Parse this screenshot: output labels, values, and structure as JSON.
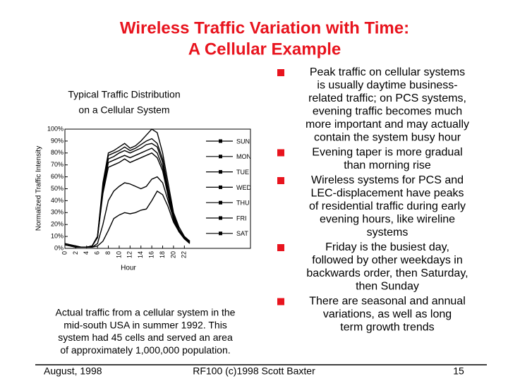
{
  "title": {
    "lines": [
      "Wireless Traffic Variation with Time:",
      "A Cellular Example"
    ]
  },
  "chart_data": {
    "type": "line",
    "title_lines": [
      "Typical Traffic Distribution",
      "on a Cellular System"
    ],
    "y_label": "Normalized Traffic Intensity",
    "x_label": "Hour",
    "x": [
      0,
      1,
      2,
      3,
      4,
      5,
      6,
      7,
      8,
      9,
      10,
      11,
      12,
      13,
      14,
      15,
      16,
      17,
      18,
      19,
      20,
      21,
      22,
      23
    ],
    "xlim": [
      0,
      23
    ],
    "xticks": [
      0,
      2,
      4,
      6,
      8,
      10,
      12,
      14,
      16,
      18,
      20,
      22
    ],
    "ylim": [
      0,
      100
    ],
    "yticks": [
      {
        "value": 0,
        "label": "0%"
      },
      {
        "value": 10,
        "label": "10%"
      },
      {
        "value": 20,
        "label": "20%"
      },
      {
        "value": 30,
        "label": "30%"
      },
      {
        "value": 40,
        "label": "40%"
      },
      {
        "value": 50,
        "label": "50%"
      },
      {
        "value": 60,
        "label": "60%"
      },
      {
        "value": 70,
        "label": "70%"
      },
      {
        "value": 80,
        "label": "80%"
      },
      {
        "value": 90,
        "label": "90%"
      },
      {
        "value": 100,
        "label": "100%"
      }
    ],
    "series": [
      {
        "name": "SUN",
        "color": "#000000",
        "values": [
          4,
          3,
          2,
          1,
          1,
          1,
          2,
          6,
          15,
          25,
          28,
          30,
          29,
          30,
          32,
          33,
          40,
          48,
          45,
          35,
          22,
          14,
          9,
          6
        ]
      },
      {
        "name": "MON",
        "color": "#000000",
        "values": [
          3,
          2,
          1,
          1,
          1,
          2,
          9,
          46,
          68,
          70,
          72,
          75,
          72,
          74,
          76,
          78,
          80,
          76,
          65,
          44,
          24,
          14,
          8,
          4
        ]
      },
      {
        "name": "TUE",
        "color": "#000000",
        "values": [
          3,
          2,
          1,
          1,
          1,
          2,
          9,
          48,
          72,
          74,
          76,
          78,
          76,
          78,
          80,
          82,
          84,
          80,
          68,
          46,
          25,
          14,
          8,
          5
        ]
      },
      {
        "name": "WED",
        "color": "#000000",
        "values": [
          3,
          2,
          1,
          1,
          1,
          2,
          9,
          50,
          75,
          77,
          80,
          82,
          80,
          82,
          84,
          87,
          88,
          85,
          72,
          48,
          27,
          15,
          8,
          5
        ]
      },
      {
        "name": "THU",
        "color": "#000000",
        "values": [
          3,
          2,
          1,
          1,
          1,
          2,
          10,
          52,
          78,
          80,
          82,
          85,
          82,
          84,
          87,
          90,
          92,
          88,
          75,
          50,
          28,
          16,
          9,
          5
        ]
      },
      {
        "name": "FRI",
        "color": "#000000",
        "values": [
          3,
          2,
          1,
          1,
          1,
          2,
          10,
          55,
          80,
          82,
          85,
          88,
          84,
          86,
          90,
          95,
          100,
          97,
          80,
          55,
          30,
          18,
          10,
          6
        ]
      },
      {
        "name": "SAT",
        "color": "#000000",
        "values": [
          4,
          3,
          2,
          1,
          1,
          1,
          4,
          20,
          40,
          48,
          52,
          55,
          54,
          52,
          50,
          52,
          58,
          60,
          55,
          40,
          25,
          15,
          10,
          6
        ]
      }
    ]
  },
  "caption": {
    "lines": [
      "Actual traffic from a cellular system in the",
      "mid-south USA in summer 1992. This",
      "system had 45 cells and served an area",
      "of approximately 1,000,000 population."
    ]
  },
  "bullets": [
    {
      "lines": [
        "Peak traffic on cellular systems",
        "is usually daytime business-",
        "related traffic; on PCS systems,",
        "evening traffic becomes much",
        "more important and may actually",
        "contain the system busy hour"
      ]
    },
    {
      "lines": [
        "Evening taper is more gradual",
        "than morning rise"
      ]
    },
    {
      "lines": [
        "Wireless systems for PCS and",
        "LEC-displacement have peaks",
        "of residential traffic during early",
        "evening hours, like wireline",
        "systems"
      ]
    },
    {
      "lines": [
        "Friday is the busiest day,",
        "followed by other weekdays in",
        "backwards order, then Saturday,",
        "then Sunday"
      ]
    },
    {
      "lines": [
        "There are seasonal and annual",
        "variations, as well as long",
        "term growth trends"
      ]
    }
  ],
  "footer": {
    "left": "August, 1998",
    "center": "RF100 (c)1998 Scott Baxter",
    "right": "15"
  }
}
